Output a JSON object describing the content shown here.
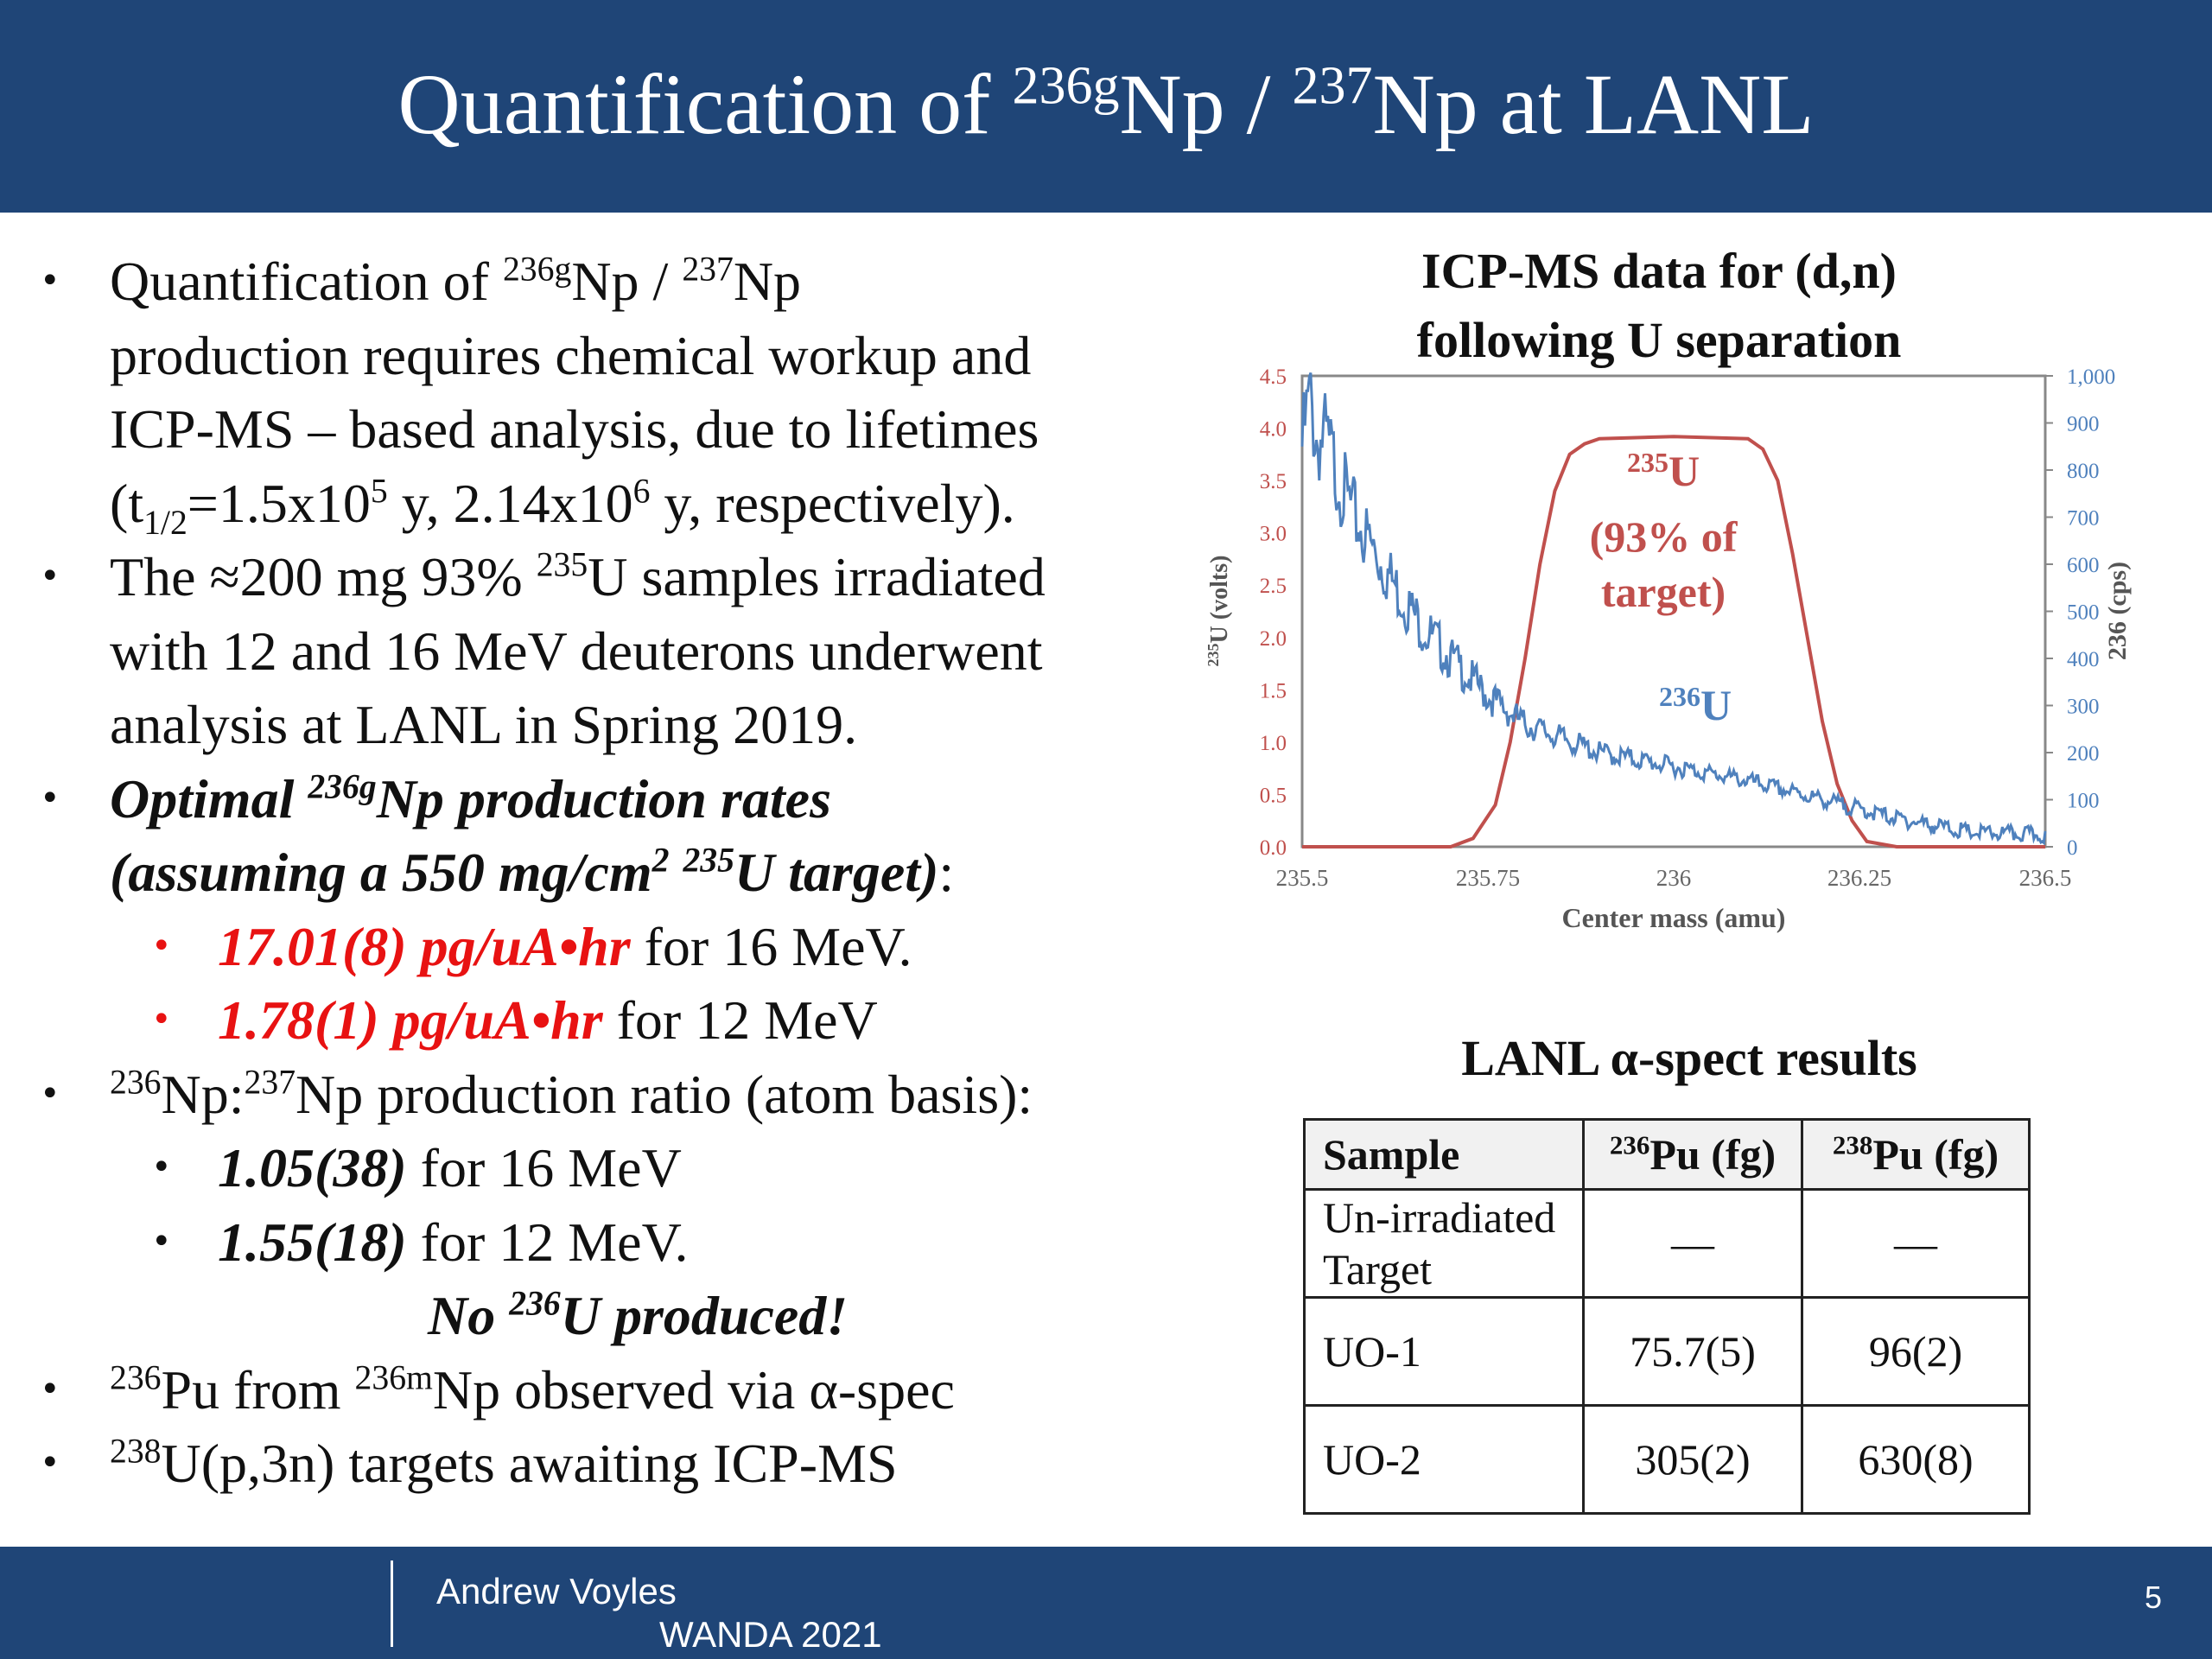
{
  "header": {
    "title_prefix": "Quantification of ",
    "title_sup1": "236g",
    "title_mid": "Np / ",
    "title_sup2": "237",
    "title_suffix": "Np at LANL"
  },
  "bullets": {
    "b1": {
      "l1_a": "Quantification of ",
      "l1_sup1": "236g",
      "l1_b": "Np / ",
      "l1_sup2": "237",
      "l1_c": "Np",
      "l2": "production requires chemical workup and",
      "l3": "ICP-MS – based analysis, due to lifetimes",
      "l4_a": "(t",
      "l4_sub": "1/2",
      "l4_b": "=1.5x10",
      "l4_sup1": "5",
      "l4_c": " y, 2.14x10",
      "l4_sup2": "6",
      "l4_d": " y, respectively)."
    },
    "b2": {
      "l1_a": "The ≈200 mg 93% ",
      "l1_sup": "235",
      "l1_b": "U samples irradiated",
      "l2": "with 12 and 16 MeV deuterons underwent",
      "l3": "analysis at LANL in Spring 2019."
    },
    "b3": {
      "l1_a": "Optimal ",
      "l1_sup": "236g",
      "l1_b": "Np production rates",
      "l2_a": "(assuming a 550 mg/cm",
      "l2_sup1": "2",
      "l2_b": " ",
      "l2_sup2": "235",
      "l2_c": "U target)",
      "l2_colon": ":",
      "s1_val": "17.01(8) pg/uA•hr",
      "s1_rest": " for 16 MeV.",
      "s2_val": "1.78(1) pg/uA•hr",
      "s2_rest": " for 12 MeV"
    },
    "b4": {
      "l1_sup1": "236",
      "l1_a": "Np:",
      "l1_sup2": "237",
      "l1_b": "Np production ratio (atom basis):",
      "s1_val": "1.05(38)",
      "s1_rest": " for 16 MeV",
      "s2_val": "1.55(18)",
      "s2_rest": " for 12 MeV.",
      "note_a": "No ",
      "note_sup": "236",
      "note_b": "U produced!"
    },
    "b5": {
      "sup1": "236",
      "a": "Pu from ",
      "sup2": "236m",
      "b": "Np observed via α-spec"
    },
    "b6": {
      "sup": "238",
      "a": "U(p,3n) targets awaiting ICP-MS"
    }
  },
  "chart_title": {
    "line1": "ICP-MS data for (d,n)",
    "line2": "following U separation"
  },
  "chart_data": {
    "type": "line",
    "xlabel": "Center mass (amu)",
    "ylabel_left_sup": "235",
    "ylabel_left": "U (volts)",
    "ylabel_right": "236 (cps)",
    "xlim": [
      235.5,
      236.5
    ],
    "ylim_left": [
      0,
      4.5
    ],
    "ylim_right": [
      0,
      1000
    ],
    "x_ticks": [
      "235.5",
      "235.75",
      "236",
      "236.25",
      "236.5"
    ],
    "y_left_ticks": [
      "0.0",
      "0.5",
      "1.0",
      "1.5",
      "2.0",
      "2.5",
      "3.0",
      "3.5",
      "4.0",
      "4.5"
    ],
    "y_right_ticks": [
      "0",
      "100",
      "200",
      "300",
      "400",
      "500",
      "600",
      "700",
      "800",
      "900",
      "1,000"
    ],
    "series": [
      {
        "axis": "left",
        "color": "#c0504d",
        "x": [
          235.5,
          235.7,
          235.73,
          235.76,
          235.78,
          235.8,
          235.82,
          235.84,
          235.86,
          235.88,
          235.9,
          236.0,
          236.1,
          236.12,
          236.14,
          236.16,
          236.18,
          236.2,
          236.22,
          236.24,
          236.26,
          236.3,
          236.5
        ],
        "y": [
          0,
          0,
          0.08,
          0.4,
          1.0,
          1.8,
          2.7,
          3.4,
          3.75,
          3.85,
          3.9,
          3.92,
          3.9,
          3.8,
          3.5,
          2.8,
          2.0,
          1.2,
          0.6,
          0.25,
          0.05,
          0,
          0
        ]
      },
      {
        "axis": "right",
        "color": "#4f81bd",
        "x": [
          235.5,
          235.51,
          235.52,
          235.53,
          235.55,
          235.57,
          235.6,
          235.63,
          235.66,
          235.7,
          235.75,
          235.8,
          235.85,
          235.9,
          236.0,
          236.1,
          236.2,
          236.25,
          236.3,
          236.4,
          236.5
        ],
        "y": [
          850,
          950,
          860,
          870,
          780,
          700,
          620,
          540,
          470,
          400,
          320,
          260,
          230,
          200,
          170,
          140,
          100,
          80,
          60,
          30,
          25
        ]
      }
    ],
    "annotations": {
      "u235_sup": "235",
      "u235_label": "U",
      "u235_line2": "(93% of",
      "u235_line3": "target)",
      "u236_sup": "236",
      "u236_label": "U"
    }
  },
  "table_title": "LANL α-spect results",
  "table": {
    "headers": {
      "sample": "Sample",
      "pu236_sup": "236",
      "pu236": "Pu (fg)",
      "pu238_sup": "238",
      "pu238": "Pu (fg)"
    },
    "rows": [
      {
        "sample_l1": "Un-irradiated",
        "sample_l2": "Target",
        "pu236": "—",
        "pu238": "—"
      },
      {
        "sample_l1": "UO-1",
        "pu236": "75.7(5)",
        "pu238": "96(2)"
      },
      {
        "sample_l1": "UO-2",
        "pu236": "305(2)",
        "pu238": "630(8)"
      }
    ]
  },
  "footer": {
    "author": "Andrew Voyles",
    "conference": "WANDA 2021",
    "page": "5"
  }
}
